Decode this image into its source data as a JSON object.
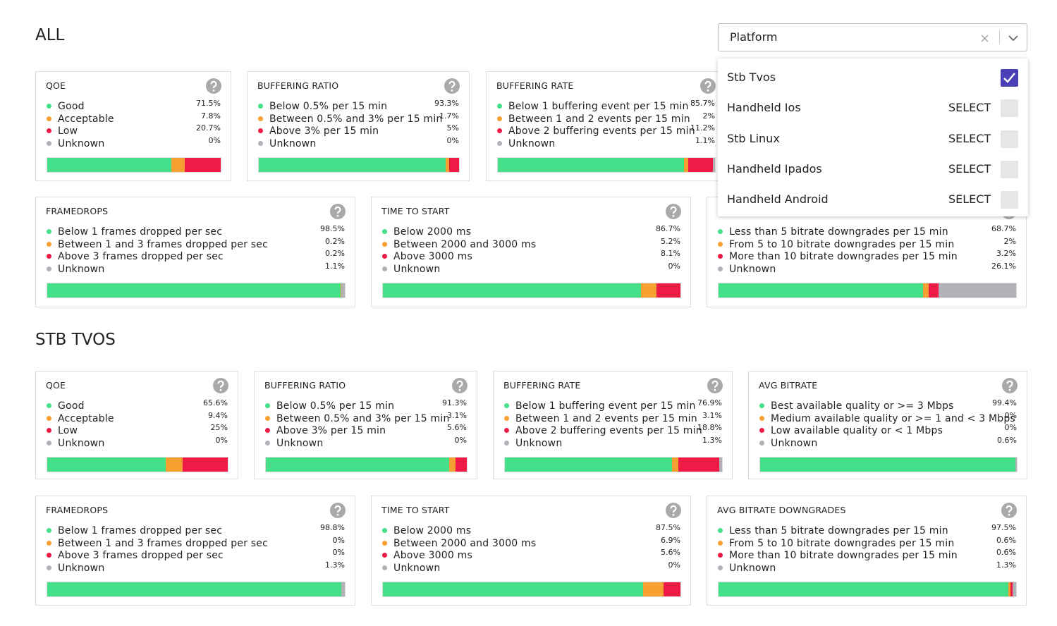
{
  "sections": [
    {
      "title": "ALL",
      "rows": [
        [
          {
            "title": "QOE",
            "labels": [
              "Good",
              "Acceptable",
              "Low",
              "Unknown"
            ],
            "values": [
              71.5,
              7.8,
              20.7,
              0
            ],
            "value_labels": [
              "71.5%",
              "7.8%",
              "20.7%",
              "0%"
            ]
          },
          {
            "title": "BUFFERING RATIO",
            "labels": [
              "Below 0.5% per 15 min",
              "Between 0.5% and 3% per 15 min",
              "Above 3% per 15 min",
              "Unknown"
            ],
            "values": [
              93.3,
              1.7,
              5,
              0
            ],
            "value_labels": [
              "93.3%",
              "1.7%",
              "5%",
              "0%"
            ]
          },
          {
            "title": "BUFFERING RATE",
            "labels": [
              "Below 1 buffering event per 15 min",
              "Between 1 and 2 events per 15 min",
              "Above 2 buffering events per 15 min",
              "Unknown"
            ],
            "values": [
              85.7,
              2,
              11.2,
              1.1
            ],
            "value_labels": [
              "85.7%",
              "2%",
              "11.2%",
              "1.1%"
            ]
          }
        ],
        [
          {
            "title": "FRAMEDROPS",
            "labels": [
              "Below 1 frames dropped per sec",
              "Between 1 and 3 frames dropped per sec",
              "Above 3 frames dropped per sec",
              "Unknown"
            ],
            "values": [
              98.5,
              0.2,
              0.2,
              1.1
            ],
            "value_labels": [
              "98.5%",
              "0.2%",
              "0.2%",
              "1.1%"
            ]
          },
          {
            "title": "TIME TO START",
            "labels": [
              "Below 2000 ms",
              "Between 2000 and 3000 ms",
              "Above 3000 ms",
              "Unknown"
            ],
            "values": [
              86.7,
              5.2,
              8.1,
              0
            ],
            "value_labels": [
              "86.7%",
              "5.2%",
              "8.1%",
              "0%"
            ]
          },
          {
            "labels": [
              "Less than 5 bitrate downgrades per 15 min",
              "From 5 to 10 bitrate downgrades per 15 min",
              "More than 10 bitrate downgrades per 15 min",
              "Unknown"
            ],
            "values": [
              68.7,
              2,
              3.2,
              26.1
            ],
            "value_labels": [
              "68.7%",
              "2%",
              "3.2%",
              "26.1%"
            ]
          }
        ]
      ]
    },
    {
      "title": "STB TVOS",
      "rows": [
        [
          {
            "title": "QOE",
            "labels": [
              "Good",
              "Acceptable",
              "Low",
              "Unknown"
            ],
            "values": [
              65.6,
              9.4,
              25,
              0
            ],
            "value_labels": [
              "65.6%",
              "9.4%",
              "25%",
              "0%"
            ]
          },
          {
            "title": "BUFFERING RATIO",
            "labels": [
              "Below 0.5% per 15 min",
              "Between 0.5% and 3% per 15 min",
              "Above 3% per 15 min",
              "Unknown"
            ],
            "values": [
              91.3,
              3.1,
              5.6,
              0
            ],
            "value_labels": [
              "91.3%",
              "3.1%",
              "5.6%",
              "0%"
            ]
          },
          {
            "title": "BUFFERING RATE",
            "labels": [
              "Below 1 buffering event per 15 min",
              "Between 1 and 2 events per 15 min",
              "Above 2 buffering events per 15 min",
              "Unknown"
            ],
            "values": [
              76.9,
              3.1,
              18.8,
              1.3
            ],
            "value_labels": [
              "76.9%",
              "3.1%",
              "18.8%",
              "1.3%"
            ]
          },
          {
            "title": "AVG BITRATE",
            "labels": [
              "Best available quality or >= 3 Mbps",
              "Medium available quality or >= 1 and < 3 Mbps",
              "Low available quality or < 1 Mbps",
              "Unknown"
            ],
            "values": [
              99.4,
              0,
              0,
              0.6
            ],
            "value_labels": [
              "99.4%",
              "0%",
              "0%",
              "0.6%"
            ]
          }
        ],
        [
          {
            "title": "FRAMEDROPS",
            "labels": [
              "Below 1 frames dropped per sec",
              "Between 1 and 3 frames dropped per sec",
              "Above 3 frames dropped per sec",
              "Unknown"
            ],
            "values": [
              98.8,
              0,
              0,
              1.3
            ],
            "value_labels": [
              "98.8%",
              "0%",
              "0%",
              "1.3%"
            ]
          },
          {
            "title": "TIME TO START",
            "labels": [
              "Below 2000 ms",
              "Between 2000 and 3000 ms",
              "Above 3000 ms",
              "Unknown"
            ],
            "values": [
              87.5,
              6.9,
              5.6,
              0
            ],
            "value_labels": [
              "87.5%",
              "6.9%",
              "5.6%",
              "0%"
            ]
          },
          {
            "title": "AVG BITRATE DOWNGRADES",
            "labels": [
              "Less than 5 bitrate downgrades per 15 min",
              "From 5 to 10 bitrate downgrades per 15 min",
              "More than 10 bitrate downgrades per 15 min",
              "Unknown"
            ],
            "values": [
              97.5,
              0.6,
              0.6,
              1.3
            ],
            "value_labels": [
              "97.5%",
              "0.6%",
              "0.6%",
              "1.3%"
            ]
          }
        ]
      ]
    }
  ],
  "dropdown": {
    "placeholder": "Platform",
    "options": [
      {
        "label": "Stb Tvos",
        "selected": true
      },
      {
        "label": "Handheld Ios",
        "action": "SELECT"
      },
      {
        "label": "Stb Linux",
        "action": "SELECT"
      },
      {
        "label": "Handheld Ipados",
        "action": "SELECT"
      },
      {
        "label": "Handheld Android",
        "action": "SELECT"
      }
    ]
  }
}
